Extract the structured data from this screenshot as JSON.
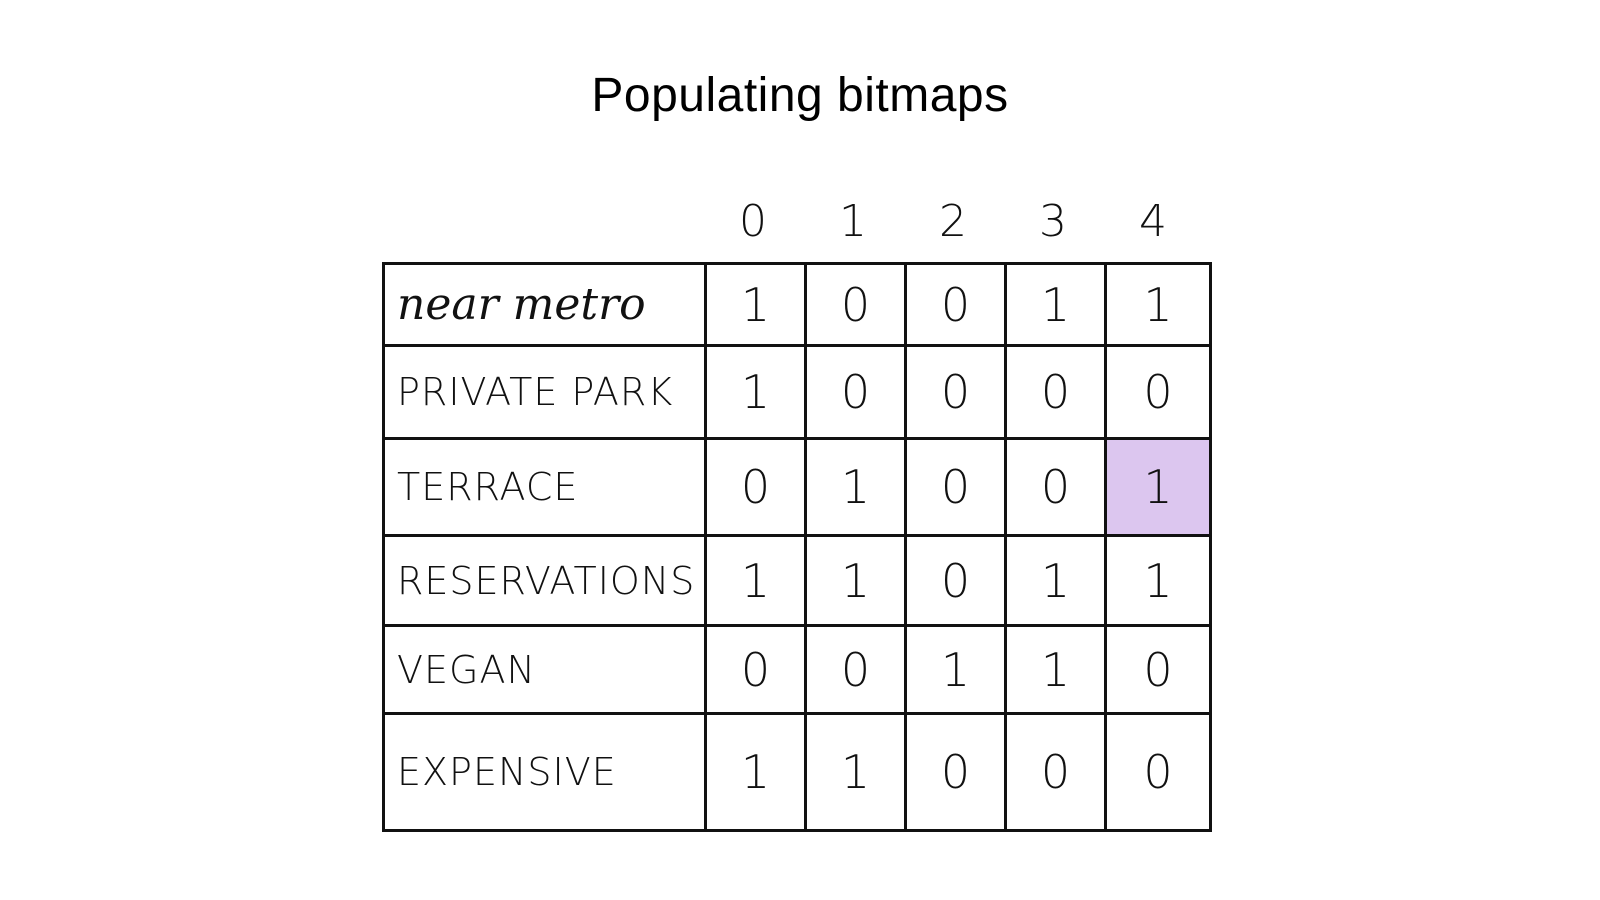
{
  "title": "Populating bitmaps",
  "columns": [
    "0",
    "1",
    "2",
    "3",
    "4"
  ],
  "highlight_color": "#dcc6ef",
  "highlight": {
    "row": 2,
    "col": 4
  },
  "rows": [
    {
      "label": "near metro",
      "bits": [
        "1",
        "0",
        "0",
        "1",
        "1"
      ]
    },
    {
      "label": "PRIVATE PARK",
      "bits": [
        "1",
        "0",
        "0",
        "0",
        "0"
      ]
    },
    {
      "label": "TERRACE",
      "bits": [
        "0",
        "1",
        "0",
        "0",
        "1"
      ]
    },
    {
      "label": "RESERVATIONS",
      "bits": [
        "1",
        "1",
        "0",
        "1",
        "1"
      ]
    },
    {
      "label": "VEGAN",
      "bits": [
        "0",
        "0",
        "1",
        "1",
        "0"
      ]
    },
    {
      "label": "EXPENSIVE",
      "bits": [
        "1",
        "1",
        "0",
        "0",
        "0"
      ]
    }
  ]
}
